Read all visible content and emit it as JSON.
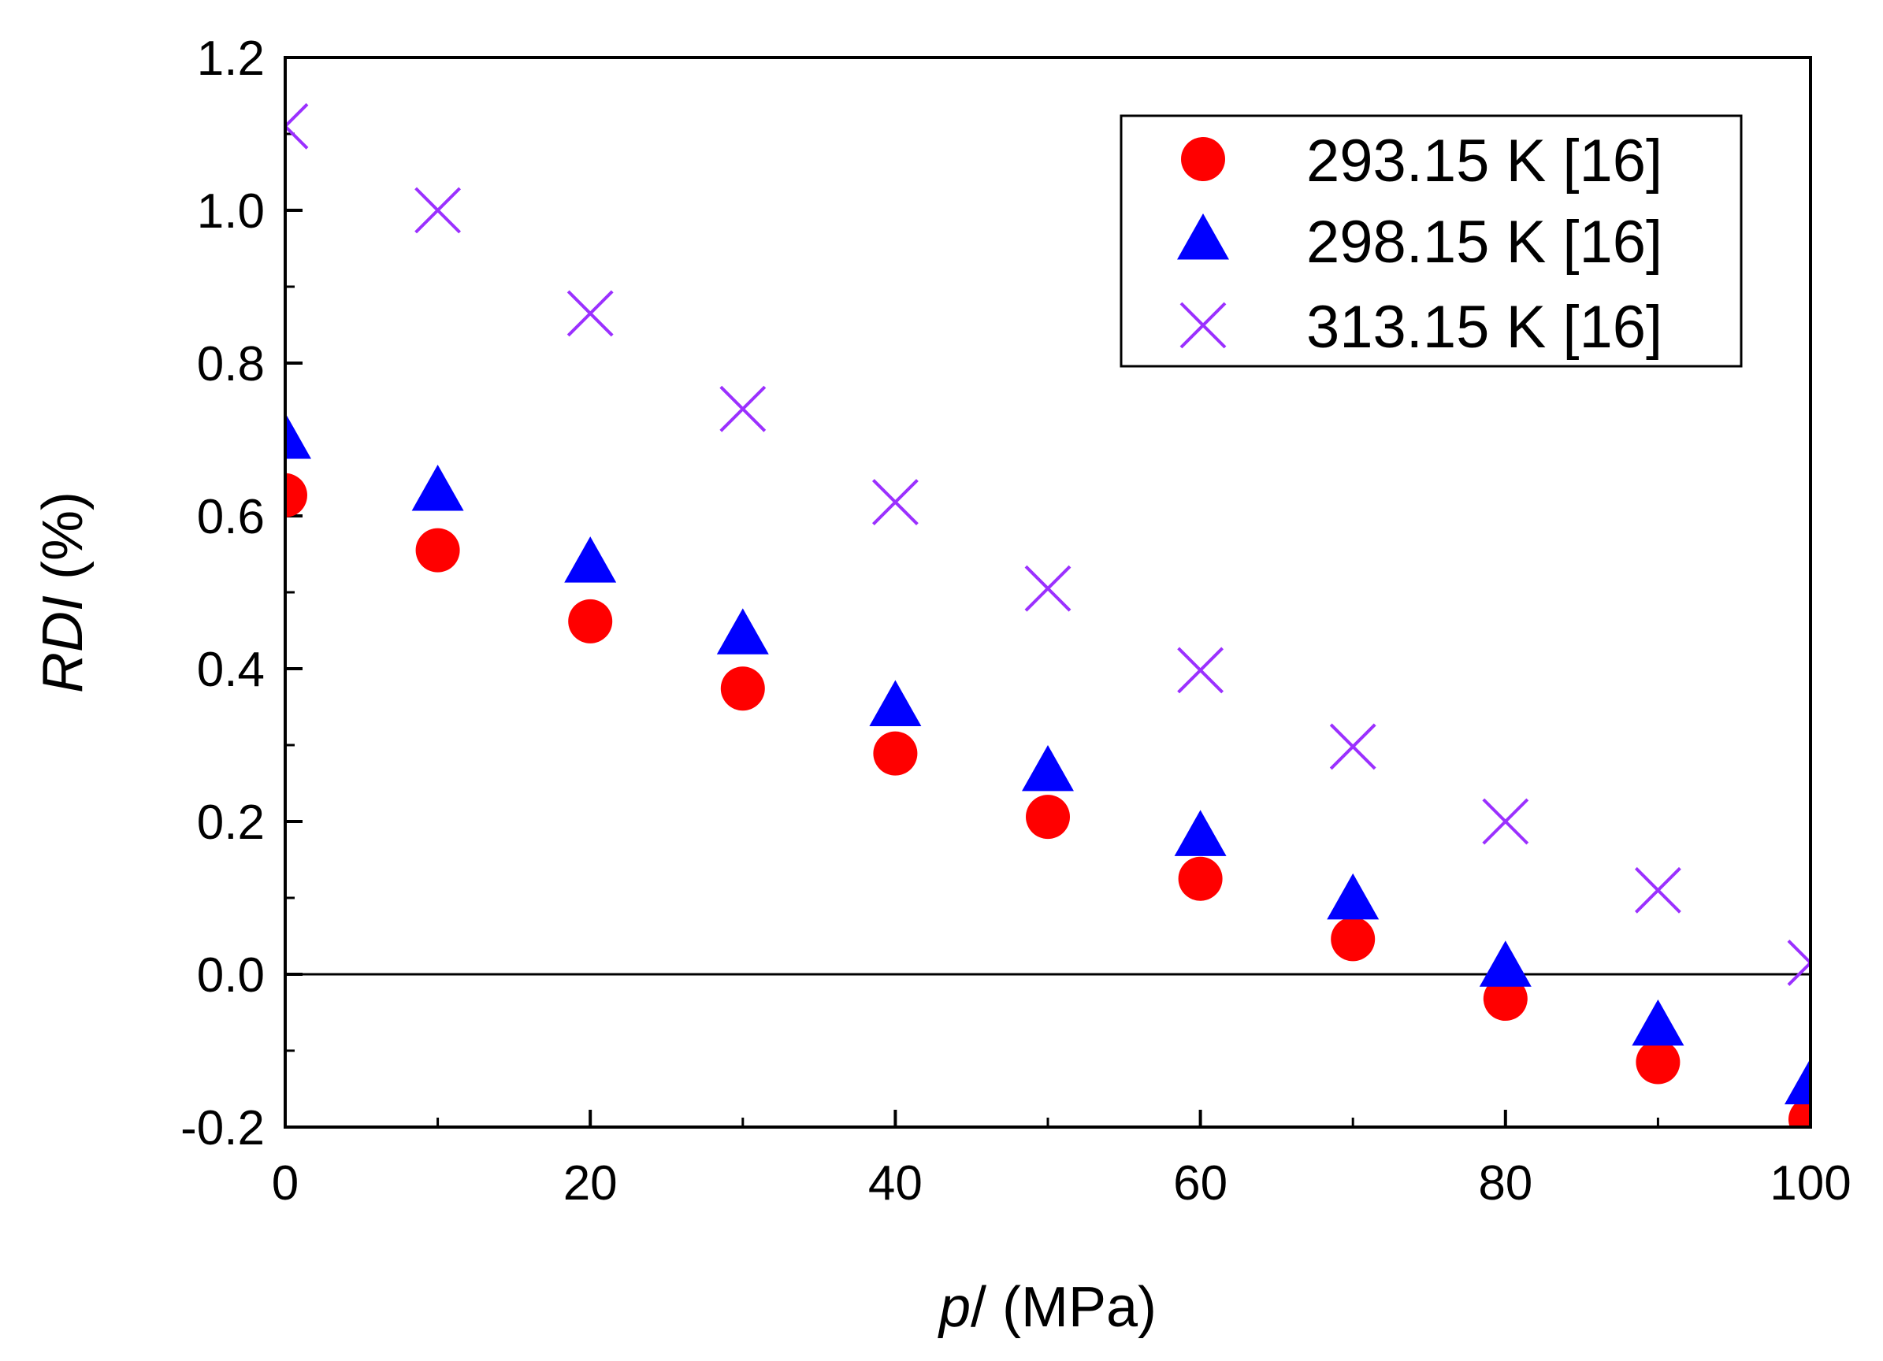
{
  "chart_data": {
    "type": "scatter",
    "title": "",
    "xlabel_italic": "p",
    "xlabel_rest": "/ (MPa)",
    "ylabel_italic": "RDI",
    "ylabel_rest": " (%)",
    "xlim": [
      0,
      100
    ],
    "ylim": [
      -0.2,
      1.2
    ],
    "xticks": [
      0,
      20,
      40,
      60,
      80,
      100
    ],
    "xtick_labels": [
      "0",
      "20",
      "40",
      "60",
      "80",
      "100"
    ],
    "xminor": [
      10,
      30,
      50,
      70,
      90
    ],
    "yticks": [
      -0.2,
      0.0,
      0.2,
      0.4,
      0.6,
      0.8,
      1.0,
      1.2
    ],
    "ytick_labels": [
      "-0.2",
      "0.0",
      "0.2",
      "0.4",
      "0.6",
      "0.8",
      "1.0",
      "1.2"
    ],
    "yminor": [
      -0.1,
      0.1,
      0.3,
      0.5,
      0.7,
      0.9,
      1.1
    ],
    "zero_line": true,
    "legend_position": "top-right",
    "x": [
      0,
      10,
      20,
      30,
      40,
      50,
      60,
      70,
      80,
      90,
      100
    ],
    "series": [
      {
        "name": "293.15 K [16]",
        "marker": "circle",
        "color": "#ff0000",
        "values": [
          0.627,
          0.555,
          0.462,
          0.374,
          0.289,
          0.206,
          0.125,
          0.046,
          -0.032,
          -0.115,
          -0.19
        ]
      },
      {
        "name": "298.15 K [16]",
        "marker": "triangle",
        "color": "#0000ff",
        "values": [
          0.7,
          0.632,
          0.538,
          0.444,
          0.35,
          0.265,
          0.18,
          0.097,
          0.009,
          -0.068,
          -0.145
        ]
      },
      {
        "name": "313.15 K [16]",
        "marker": "cross",
        "color": "#9b30ff",
        "values": [
          1.11,
          1.0,
          0.865,
          0.74,
          0.618,
          0.505,
          0.398,
          0.298,
          0.2,
          0.11,
          0.015
        ]
      }
    ]
  }
}
